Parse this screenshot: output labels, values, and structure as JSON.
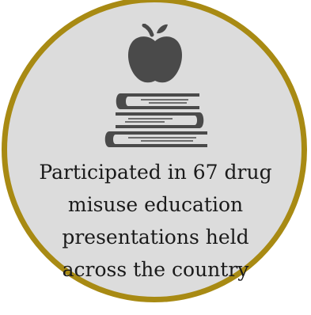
{
  "badge": {
    "caption_lines": [
      "Participated in 67 drug",
      "misuse education",
      "presentations held",
      "across the country"
    ],
    "icon": "apple-on-books-icon"
  },
  "colors": {
    "ring": "#a88a13",
    "fill": "#dcdcdc",
    "icon": "#4a4a4a",
    "text": "#1a1a1a"
  }
}
